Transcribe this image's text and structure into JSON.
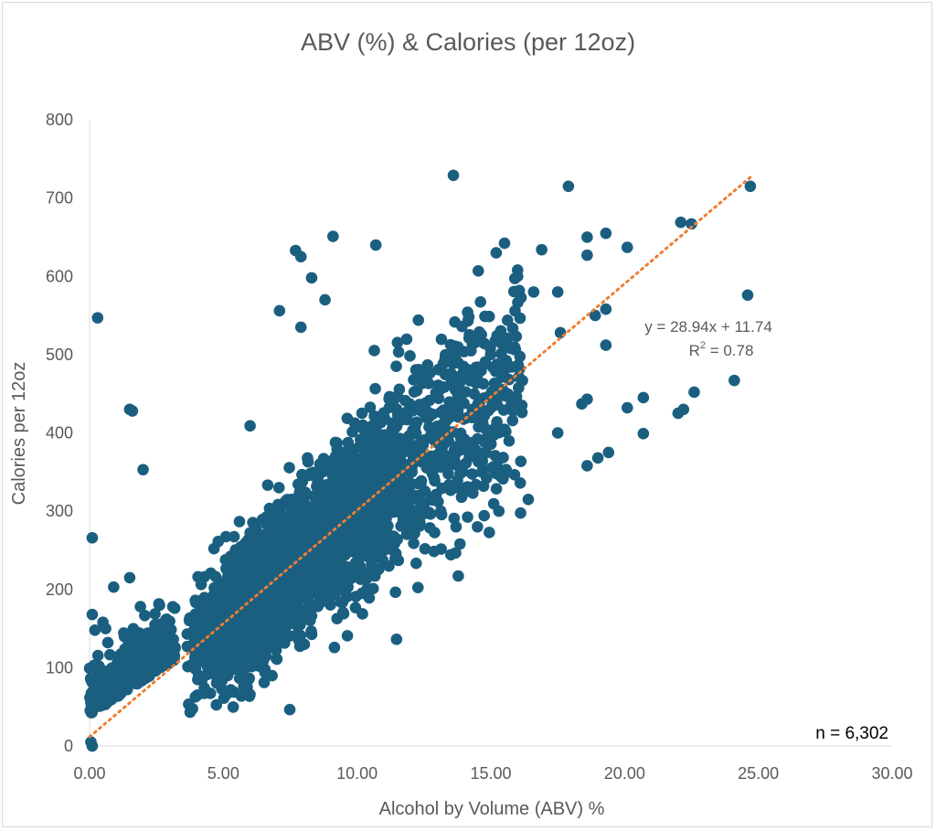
{
  "chart_data": {
    "type": "scatter",
    "title": "ABV (%) & Calories (per 12oz)",
    "xlabel": "Alcohol by Volume (ABV) %",
    "ylabel": "Calories per 12oz",
    "xlim": [
      0,
      30
    ],
    "ylim": [
      0,
      800
    ],
    "x_ticks": [
      "0.00",
      "5.00",
      "10.00",
      "15.00",
      "20.00",
      "25.00",
      "30.00"
    ],
    "y_ticks": [
      "0",
      "100",
      "200",
      "300",
      "400",
      "500",
      "600",
      "700",
      "800"
    ],
    "marker_color": "#1a5f80",
    "trendline": {
      "color": "#ed7d31",
      "slope": 28.94,
      "intercept": 11.74,
      "x_range": [
        0,
        24.8
      ],
      "equation": "y = 28.94x + 11.74",
      "r2_label": "R",
      "r2_sup": "2",
      "r2_value": " = 0.78"
    },
    "n_label": "n = 6,302",
    "outliers": [
      [
        0.3,
        547
      ],
      [
        13.6,
        729
      ],
      [
        17.9,
        715
      ],
      [
        24.7,
        715
      ],
      [
        22.1,
        669
      ],
      [
        22.5,
        667
      ],
      [
        19.3,
        655
      ],
      [
        18.6,
        650
      ],
      [
        9.1,
        651
      ],
      [
        10.7,
        640
      ],
      [
        7.7,
        633
      ],
      [
        7.9,
        625
      ],
      [
        20.1,
        637
      ],
      [
        16.9,
        634
      ],
      [
        15.2,
        630
      ],
      [
        8.3,
        598
      ],
      [
        24.6,
        576
      ],
      [
        8.8,
        570
      ],
      [
        7.1,
        556
      ],
      [
        7.9,
        535
      ],
      [
        6.0,
        409
      ],
      [
        1.5,
        430
      ],
      [
        1.6,
        428
      ],
      [
        2.0,
        353
      ],
      [
        0.1,
        266
      ],
      [
        0.9,
        203
      ],
      [
        1.5,
        215
      ],
      [
        1.9,
        178
      ],
      [
        0.1,
        168
      ],
      [
        0.2,
        148
      ],
      [
        0.5,
        158
      ],
      [
        0.6,
        150
      ],
      [
        24.1,
        467
      ],
      [
        22.6,
        452
      ],
      [
        22.2,
        430
      ],
      [
        22.0,
        425
      ],
      [
        20.7,
        445
      ],
      [
        20.7,
        399
      ],
      [
        20.1,
        432
      ],
      [
        19.4,
        375
      ],
      [
        19.0,
        368
      ],
      [
        18.6,
        358
      ],
      [
        18.4,
        437
      ],
      [
        18.6,
        443
      ],
      [
        17.5,
        400
      ],
      [
        19.3,
        512
      ],
      [
        19.3,
        558
      ],
      [
        18.9,
        550
      ],
      [
        17.6,
        528
      ],
      [
        17.5,
        580
      ],
      [
        16.0,
        608
      ],
      [
        16.6,
        580
      ],
      [
        16.4,
        315
      ],
      [
        16.1,
        336
      ],
      [
        15.3,
        300
      ],
      [
        14.5,
        280
      ],
      [
        13.7,
        280
      ],
      [
        18.6,
        627
      ],
      [
        0.05,
        5
      ],
      [
        0.1,
        0
      ]
    ],
    "cluster_center_x": 8.5,
    "cluster_count": 3200,
    "cluster_seed": 7
  }
}
